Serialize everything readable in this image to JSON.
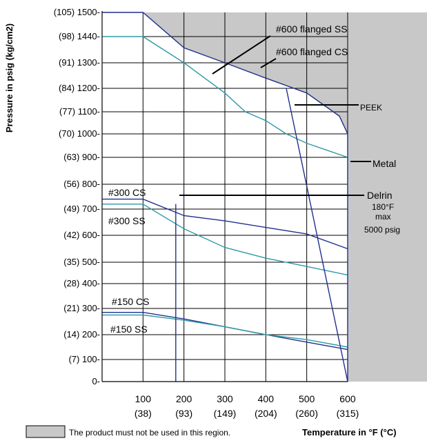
{
  "chart_data": {
    "type": "line",
    "ylabel": "Pressure in psig (kg/cm2)",
    "xlabel": "Temperature in °F (°C)",
    "xlim": [
      0,
      600
    ],
    "ylim": [
      0,
      1500
    ],
    "yticks": [
      {
        "v": 1500,
        "label": "(105) 1500-"
      },
      {
        "v": 1440,
        "label": "(98) 1440-"
      },
      {
        "v": 1300,
        "label": "(91) 1300-"
      },
      {
        "v": 1200,
        "label": "(84) 1200-"
      },
      {
        "v": 1100,
        "label": "(77) 1100-"
      },
      {
        "v": 1000,
        "label": "(70) 1000-"
      },
      {
        "v": 900,
        "label": "(63) 900-"
      },
      {
        "v": 800,
        "label": "(56) 800-"
      },
      {
        "v": 700,
        "label": "(49) 700-"
      },
      {
        "v": 600,
        "label": "(42) 600-"
      },
      {
        "v": 500,
        "label": "(35) 500-"
      },
      {
        "v": 400,
        "label": "(28) 400-"
      },
      {
        "v": 300,
        "label": "(21) 300-"
      },
      {
        "v": 200,
        "label": "(14) 200-"
      },
      {
        "v": 100,
        "label": "(7) 100-"
      },
      {
        "v": 0,
        "label": "0-"
      }
    ],
    "xticks": [
      {
        "v": 100,
        "f": "100",
        "c": "(38)"
      },
      {
        "v": 200,
        "f": "200",
        "c": "(93)"
      },
      {
        "v": 300,
        "f": "300",
        "c": "(149)"
      },
      {
        "v": 400,
        "f": "400",
        "c": "(204)"
      },
      {
        "v": 500,
        "f": "500",
        "c": "(260)"
      },
      {
        "v": 600,
        "f": "600",
        "c": "(315)"
      }
    ],
    "grid": true,
    "series": [
      {
        "name": "#600 flanged SS",
        "x": [
          0,
          100,
          200,
          300,
          350,
          400,
          450,
          500,
          550,
          600
        ],
        "y": [
          1440,
          1440,
          1300,
          1180,
          1100,
          1060,
          1000,
          960,
          930,
          900
        ]
      },
      {
        "name": "#600 flanged CS",
        "x": [
          0,
          100,
          200,
          300,
          400,
          500,
          580,
          600
        ],
        "y": [
          1500,
          1500,
          1380,
          1300,
          1240,
          1180,
          1080,
          1000
        ]
      },
      {
        "name": "#300 CS",
        "x": [
          0,
          100,
          200,
          300,
          400,
          500,
          600
        ],
        "y": [
          740,
          740,
          675,
          655,
          630,
          605,
          550
        ]
      },
      {
        "name": "#300 SS",
        "x": [
          0,
          100,
          200,
          300,
          400,
          500,
          600
        ],
        "y": [
          720,
          720,
          625,
          555,
          515,
          480,
          440
        ]
      },
      {
        "name": "#150 CS",
        "x": [
          0,
          100,
          200,
          300,
          400,
          500,
          600
        ],
        "y": [
          285,
          285,
          260,
          230,
          200,
          170,
          140
        ]
      },
      {
        "name": "#150 SS",
        "x": [
          0,
          100,
          200,
          300,
          400,
          500,
          600
        ],
        "y": [
          275,
          275,
          255,
          230,
          200,
          180,
          150
        ]
      },
      {
        "name": "PEEK",
        "x": [
          450,
          600
        ],
        "y": [
          1200,
          0
        ]
      },
      {
        "name": "Delrin",
        "x": [
          180,
          180
        ],
        "y": [
          0,
          720
        ]
      },
      {
        "name": "Metal",
        "x": [
          600,
          600
        ],
        "y": [
          0,
          1000
        ]
      }
    ],
    "annotations": [
      {
        "text": "#600 flanged SS"
      },
      {
        "text": "#600 flanged CS"
      },
      {
        "text": "PEEK"
      },
      {
        "text": "Metal"
      },
      {
        "text": "#300 CS"
      },
      {
        "text": "#300 SS"
      },
      {
        "text": "Delrin"
      },
      {
        "text": "180°F"
      },
      {
        "text": "max"
      },
      {
        "text": "5000 psig"
      },
      {
        "text": "#150 CS"
      },
      {
        "text": "#150 SS"
      }
    ],
    "legend": {
      "text": "The product must not be used in this region.",
      "placement": "bottom-left"
    }
  }
}
